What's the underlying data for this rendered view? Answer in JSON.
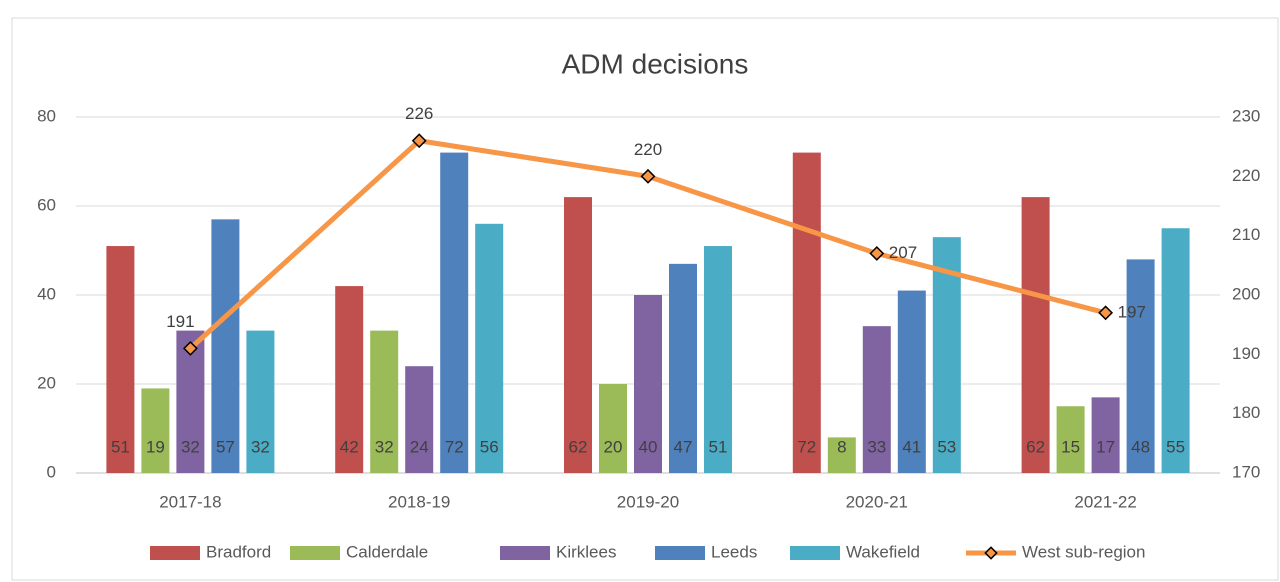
{
  "chart_data": {
    "type": "bar",
    "title": "ADM decisions",
    "categories": [
      "2017-18",
      "2018-19",
      "2019-20",
      "2020-21",
      "2021-22"
    ],
    "series": [
      {
        "name": "Bradford",
        "color": "#c0504d",
        "values": [
          51,
          42,
          62,
          72,
          62
        ]
      },
      {
        "name": "Calderdale",
        "color": "#9bbb59",
        "values": [
          19,
          32,
          20,
          8,
          15
        ]
      },
      {
        "name": "Kirklees",
        "color": "#8064a2",
        "values": [
          32,
          24,
          40,
          33,
          17
        ]
      },
      {
        "name": "Leeds",
        "color": "#4f81bd",
        "values": [
          57,
          72,
          47,
          41,
          48
        ]
      },
      {
        "name": "Wakefield",
        "color": "#4bacc6",
        "values": [
          32,
          56,
          51,
          53,
          55
        ]
      },
      {
        "name": "West sub-region",
        "color": "#f79646",
        "type": "line",
        "axis": "y2",
        "values": [
          191,
          226,
          220,
          207,
          197
        ]
      }
    ],
    "ylim": [
      0,
      80
    ],
    "yticks": [
      0,
      20,
      40,
      60,
      80
    ],
    "y2lim": [
      170,
      230
    ],
    "y2ticks": [
      170,
      180,
      190,
      200,
      210,
      220,
      230
    ],
    "grid": true,
    "legend": "bottom"
  }
}
